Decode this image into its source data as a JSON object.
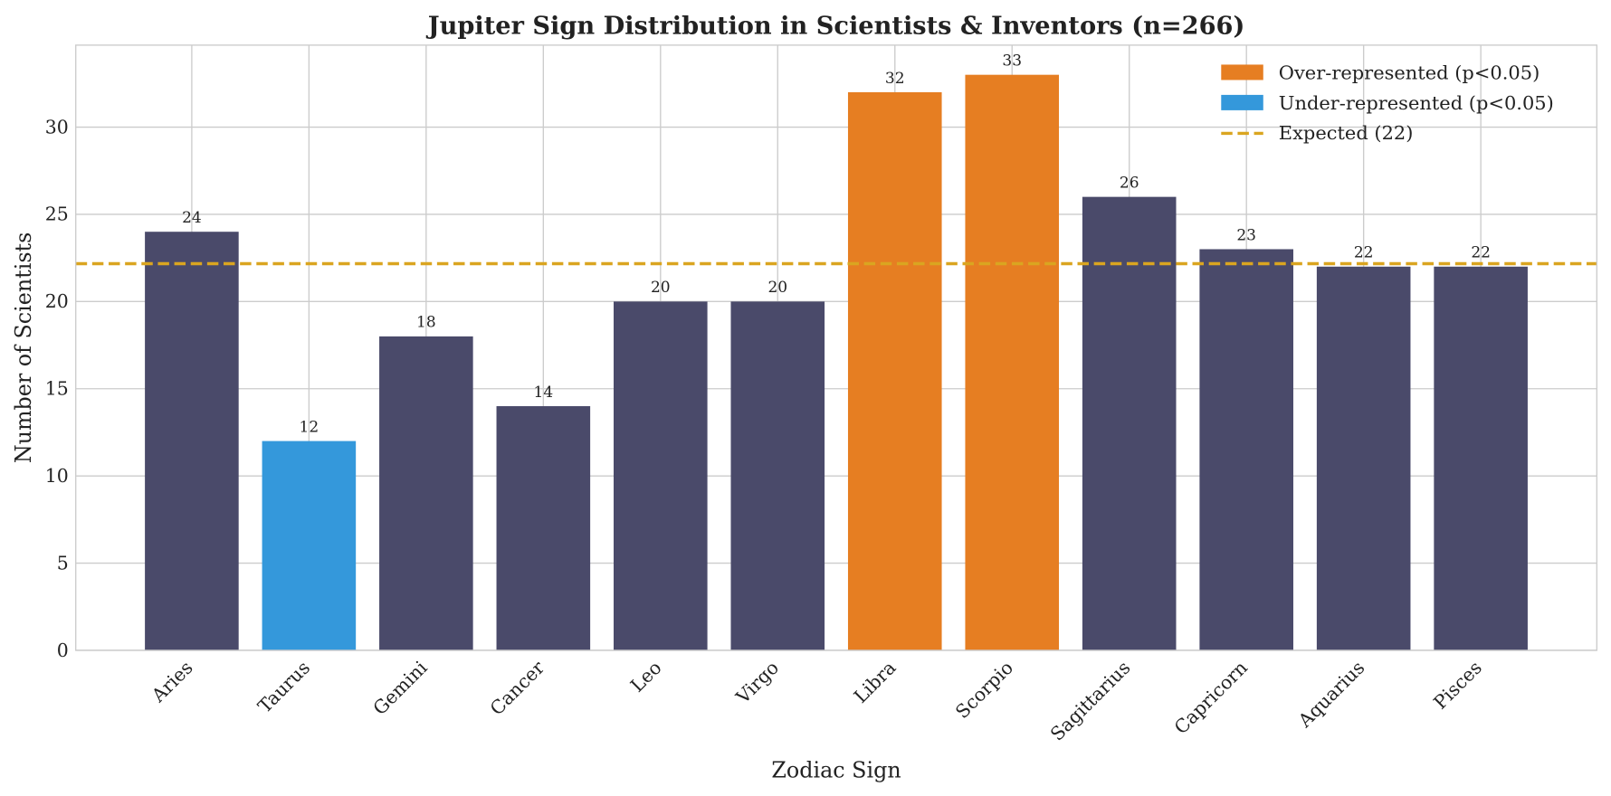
{
  "chart_data": {
    "type": "bar",
    "title": "Jupiter Sign Distribution in Scientists & Inventors (n=266)",
    "xlabel": "Zodiac Sign",
    "ylabel": "Number of Scientists",
    "categories": [
      "Aries",
      "Taurus",
      "Gemini",
      "Cancer",
      "Leo",
      "Virgo",
      "Libra",
      "Scorpio",
      "Sagittarius",
      "Capricorn",
      "Aquarius",
      "Pisces"
    ],
    "values": [
      24,
      12,
      18,
      14,
      20,
      20,
      32,
      33,
      26,
      23,
      22,
      22
    ],
    "status": [
      "normal",
      "under",
      "normal",
      "normal",
      "normal",
      "normal",
      "over",
      "over",
      "normal",
      "normal",
      "normal",
      "normal"
    ],
    "ylim": [
      0,
      34.7
    ],
    "yticks": [
      0,
      5,
      10,
      15,
      20,
      25,
      30
    ],
    "expected": 22.17,
    "grid": true,
    "legend_position": "top-right",
    "legend": [
      {
        "label": "Over-represented (p<0.05)",
        "kind": "over"
      },
      {
        "label": "Under-represented (p<0.05)",
        "kind": "under"
      },
      {
        "label": "Expected (22)",
        "kind": "expected"
      }
    ],
    "colors": {
      "normal": "#4a4a6a",
      "under": "#3498db",
      "over": "#e67e22",
      "expected": "#daa520",
      "grid": "#cccccc"
    }
  }
}
